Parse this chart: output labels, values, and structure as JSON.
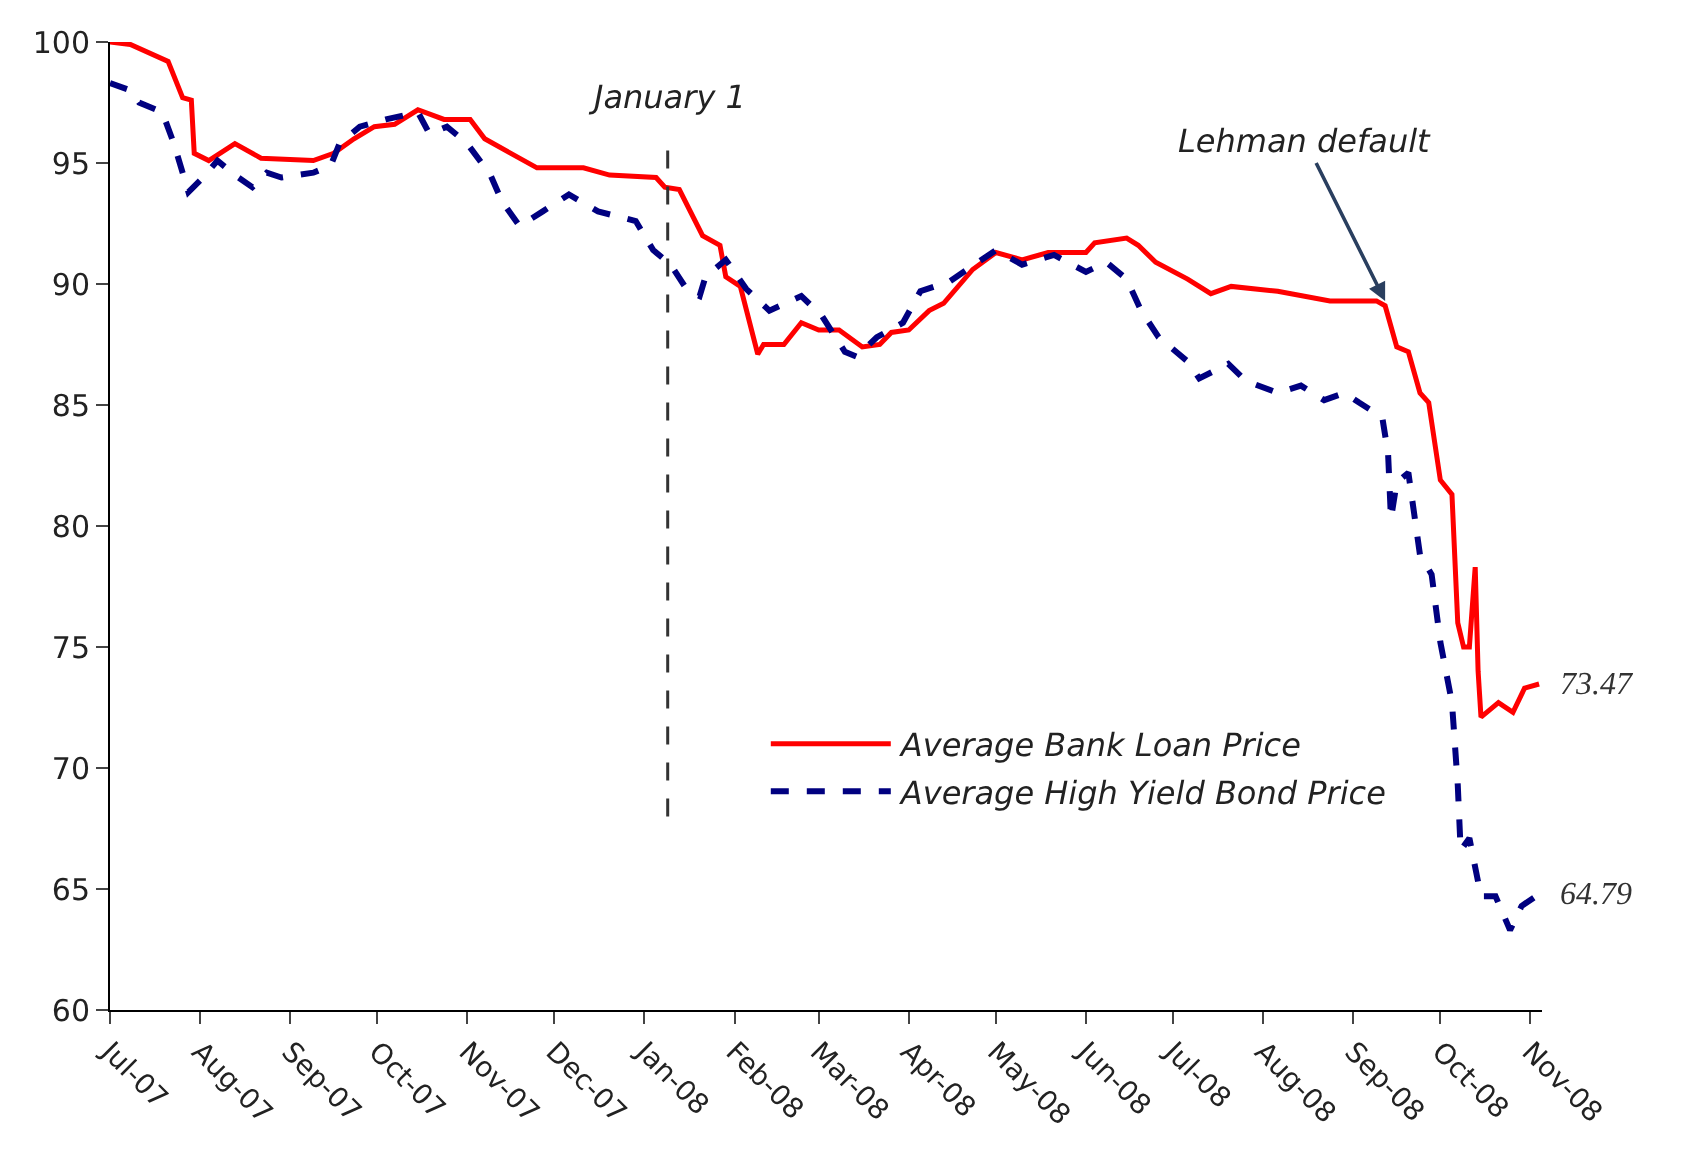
{
  "chart_data": {
    "type": "line",
    "xlim": [
      "2007-07-01",
      "2008-11-05"
    ],
    "xticks": [
      {
        "value": "2007-07-01",
        "label": "Jul-07"
      },
      {
        "value": "2007-08-01",
        "label": "Aug-07"
      },
      {
        "value": "2007-09-01",
        "label": "Sep-07"
      },
      {
        "value": "2007-10-01",
        "label": "Oct-07"
      },
      {
        "value": "2007-11-01",
        "label": "Nov-07"
      },
      {
        "value": "2007-12-01",
        "label": "Dec-07"
      },
      {
        "value": "2008-01-01",
        "label": "Jan-08"
      },
      {
        "value": "2008-02-01",
        "label": "Feb-08"
      },
      {
        "value": "2008-03-01",
        "label": "Mar-08"
      },
      {
        "value": "2008-04-01",
        "label": "Apr-08"
      },
      {
        "value": "2008-05-01",
        "label": "May-08"
      },
      {
        "value": "2008-06-01",
        "label": "Jun-08"
      },
      {
        "value": "2008-07-01",
        "label": "Jul-08"
      },
      {
        "value": "2008-08-01",
        "label": "Aug-08"
      },
      {
        "value": "2008-09-01",
        "label": "Sep-08"
      },
      {
        "value": "2008-10-01",
        "label": "Oct-08"
      },
      {
        "value": "2008-11-01",
        "label": "Nov-08"
      }
    ],
    "ylim": [
      60,
      100
    ],
    "yticks": [
      60,
      65,
      70,
      75,
      80,
      85,
      90,
      95,
      100
    ],
    "legend": "bottom right",
    "marker": "none",
    "series": [
      {
        "name": "Average Bank Loan Price",
        "color": "#ff0000",
        "line_style": "solid",
        "x": [
          "2007-07-01",
          "2007-07-08",
          "2007-07-21",
          "2007-07-26",
          "2007-07-29",
          "2007-07-30",
          "2007-08-04",
          "2007-08-13",
          "2007-08-22",
          "2007-09-09",
          "2007-09-16",
          "2007-09-23",
          "2007-09-30",
          "2007-10-07",
          "2007-10-15",
          "2007-10-24",
          "2007-11-02",
          "2007-11-07",
          "2007-11-16",
          "2007-11-25",
          "2007-12-11",
          "2007-12-20",
          "2008-01-05",
          "2008-01-08",
          "2008-01-13",
          "2008-01-21",
          "2008-01-27",
          "2008-01-29",
          "2008-02-03",
          "2008-02-09",
          "2008-02-11",
          "2008-02-18",
          "2008-02-24",
          "2008-03-01",
          "2008-03-08",
          "2008-03-16",
          "2008-03-22",
          "2008-03-26",
          "2008-04-01",
          "2008-04-08",
          "2008-04-13",
          "2008-04-23",
          "2008-05-01",
          "2008-05-10",
          "2008-05-19",
          "2008-06-01",
          "2008-06-04",
          "2008-06-15",
          "2008-06-19",
          "2008-06-25",
          "2008-07-06",
          "2008-07-14",
          "2008-07-21",
          "2008-08-06",
          "2008-08-24",
          "2008-09-09",
          "2008-09-12",
          "2008-09-16",
          "2008-09-20",
          "2008-09-24",
          "2008-09-27",
          "2008-10-01",
          "2008-10-05",
          "2008-10-07",
          "2008-10-09",
          "2008-10-11",
          "2008-10-13",
          "2008-10-14",
          "2008-10-15",
          "2008-10-21",
          "2008-10-26",
          "2008-10-30",
          "2008-11-04"
        ],
        "values": [
          100,
          99.9,
          99.2,
          97.7,
          97.6,
          95.4,
          95.1,
          95.8,
          95.2,
          95.1,
          95.4,
          96.0,
          96.5,
          96.6,
          97.2,
          96.8,
          96.8,
          96.0,
          95.4,
          94.8,
          94.8,
          94.5,
          94.4,
          94.0,
          93.9,
          92.0,
          91.6,
          90.3,
          89.9,
          87.1,
          87.5,
          87.5,
          88.4,
          88.1,
          88.1,
          87.4,
          87.5,
          88.0,
          88.1,
          88.9,
          89.2,
          90.6,
          91.3,
          91.0,
          91.3,
          91.3,
          91.7,
          91.9,
          91.6,
          90.9,
          90.2,
          89.6,
          89.9,
          89.7,
          89.3,
          89.3,
          89.1,
          87.4,
          87.2,
          85.5,
          85.1,
          81.9,
          81.3,
          76.0,
          75.0,
          75.0,
          78.3,
          74.0,
          72.1,
          72.7,
          72.3,
          73.3,
          73.47
        ]
      },
      {
        "name": "Average High Yield Bond Price",
        "color": "#000080",
        "line_style": "dashed",
        "x": [
          "2007-07-01",
          "2007-07-08",
          "2007-07-11",
          "2007-07-19",
          "2007-07-23",
          "2007-07-28",
          "2007-08-02",
          "2007-08-07",
          "2007-08-13",
          "2007-08-19",
          "2007-08-24",
          "2007-08-29",
          "2007-09-09",
          "2007-09-15",
          "2007-09-18",
          "2007-09-25",
          "2007-10-04",
          "2007-10-15",
          "2007-10-19",
          "2007-10-25",
          "2007-11-01",
          "2007-11-09",
          "2007-11-13",
          "2007-11-19",
          "2007-11-27",
          "2007-12-06",
          "2007-12-16",
          "2007-12-29",
          "2008-01-04",
          "2008-01-10",
          "2008-01-16",
          "2008-01-20",
          "2008-01-22",
          "2008-01-29",
          "2008-02-05",
          "2008-02-13",
          "2008-02-24",
          "2008-03-02",
          "2008-03-10",
          "2008-03-14",
          "2008-03-21",
          "2008-03-30",
          "2008-04-05",
          "2008-04-15",
          "2008-05-01",
          "2008-05-10",
          "2008-05-21",
          "2008-06-01",
          "2008-06-08",
          "2008-06-15",
          "2008-06-20",
          "2008-06-26",
          "2008-07-06",
          "2008-07-10",
          "2008-07-20",
          "2008-07-26",
          "2008-08-06",
          "2008-08-14",
          "2008-08-22",
          "2008-08-29",
          "2008-09-03",
          "2008-09-11",
          "2008-09-13",
          "2008-09-14",
          "2008-09-16",
          "2008-09-20",
          "2008-09-22",
          "2008-09-24",
          "2008-09-28",
          "2008-10-01",
          "2008-10-05",
          "2008-10-07",
          "2008-10-08",
          "2008-10-11",
          "2008-10-15",
          "2008-10-20",
          "2008-10-25",
          "2008-10-29",
          "2008-11-04"
        ],
        "values": [
          98.3,
          98.0,
          97.5,
          97.1,
          95.8,
          93.8,
          94.4,
          95.1,
          94.5,
          94.0,
          94.6,
          94.4,
          94.6,
          94.9,
          95.8,
          96.5,
          96.8,
          97.1,
          96.2,
          96.5,
          95.8,
          94.5,
          93.4,
          92.4,
          93.0,
          93.7,
          93.0,
          92.6,
          91.4,
          90.8,
          89.7,
          89.5,
          90.3,
          91.0,
          89.8,
          88.9,
          89.5,
          88.7,
          87.2,
          87.0,
          87.8,
          88.4,
          89.7,
          90.1,
          91.4,
          90.8,
          91.2,
          90.5,
          90.9,
          90.2,
          88.9,
          87.8,
          86.8,
          86.1,
          86.7,
          86.0,
          85.5,
          85.8,
          85.2,
          85.5,
          85.1,
          84.5,
          83.0,
          80.3,
          81.8,
          82.2,
          80.5,
          78.8,
          78.0,
          75.2,
          72.7,
          69.3,
          66.6,
          67.1,
          64.7,
          64.7,
          63.3,
          64.3,
          64.79
        ]
      }
    ],
    "ref_lines": [
      {
        "axis": "x",
        "value": "2008-01-09",
        "label": "January 1",
        "color": "#333333",
        "line_style": "dashed"
      }
    ],
    "annotations": [
      {
        "text": "Lehman default",
        "x": "2008-09-12",
        "y": 89.3
      },
      {
        "text": "73.47",
        "x": "2008-11-04",
        "y": 73.47
      },
      {
        "text": "64.79",
        "x": "2008-11-04",
        "y": 64.79
      }
    ]
  }
}
